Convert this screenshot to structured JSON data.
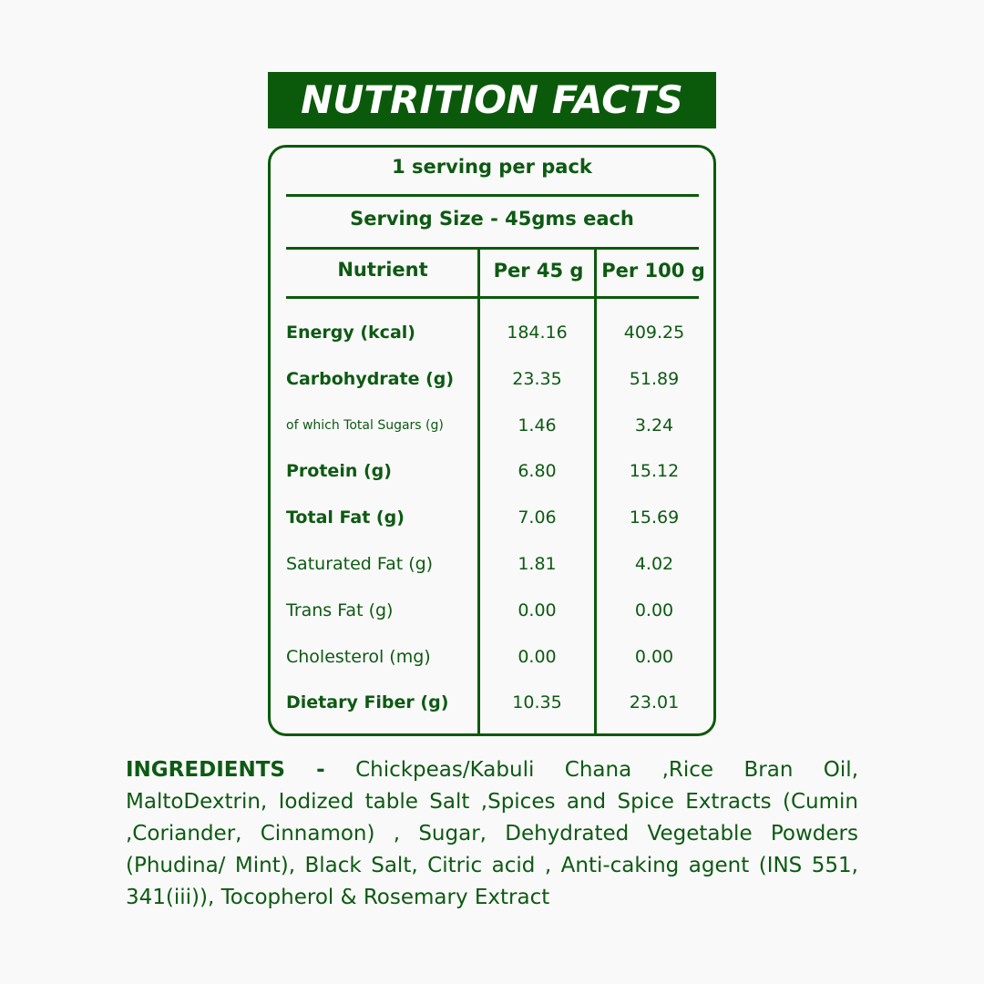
{
  "title": "NUTRITION FACTS",
  "servings": "1 serving per pack",
  "serving_size": "Serving Size - 45gms each",
  "headers": [
    "Nutrient",
    "Per 45 g",
    "Per 100 g"
  ],
  "rows": [
    {
      "name": "Energy (kcal)",
      "per45": "184.16",
      "per100": "409.25"
    },
    {
      "name": "Carbohydrate (g)",
      "per45": "23.35",
      "per100": "51.89"
    },
    {
      "name": "of which Total Sugars (g)",
      "per45": "1.46",
      "per100": "3.24"
    },
    {
      "name": "Protein (g)",
      "per45": "6.80",
      "per100": "15.12"
    },
    {
      "name": "Total Fat (g)",
      "per45": "7.06",
      "per100": "15.69"
    },
    {
      "name": "Saturated Fat (g)",
      "per45": "1.81",
      "per100": "4.02"
    },
    {
      "name": "Trans Fat (g)",
      "per45": "0.00",
      "per100": "0.00"
    },
    {
      "name": "Cholesterol (mg)",
      "per45": "0.00",
      "per100": "0.00"
    },
    {
      "name": "Dietary Fiber (g)",
      "per45": "10.35",
      "per100": "23.01"
    }
  ],
  "ingredients_label": "INGREDIENTS -",
  "ingredients": "Chickpeas/Kabuli Chana ,Rice Bran Oil, MaltoDextrin, Iodized table Salt ,Spices and Spice Extracts (Cumin ,Coriander, Cinnamon) , Sugar, Dehydrated Vegetable Powders (Phudina/ Mint), Black Salt, Citric acid , Anti-caking agent (INS 551, 341(iii)), Tocopherol & Rosemary Extract"
}
